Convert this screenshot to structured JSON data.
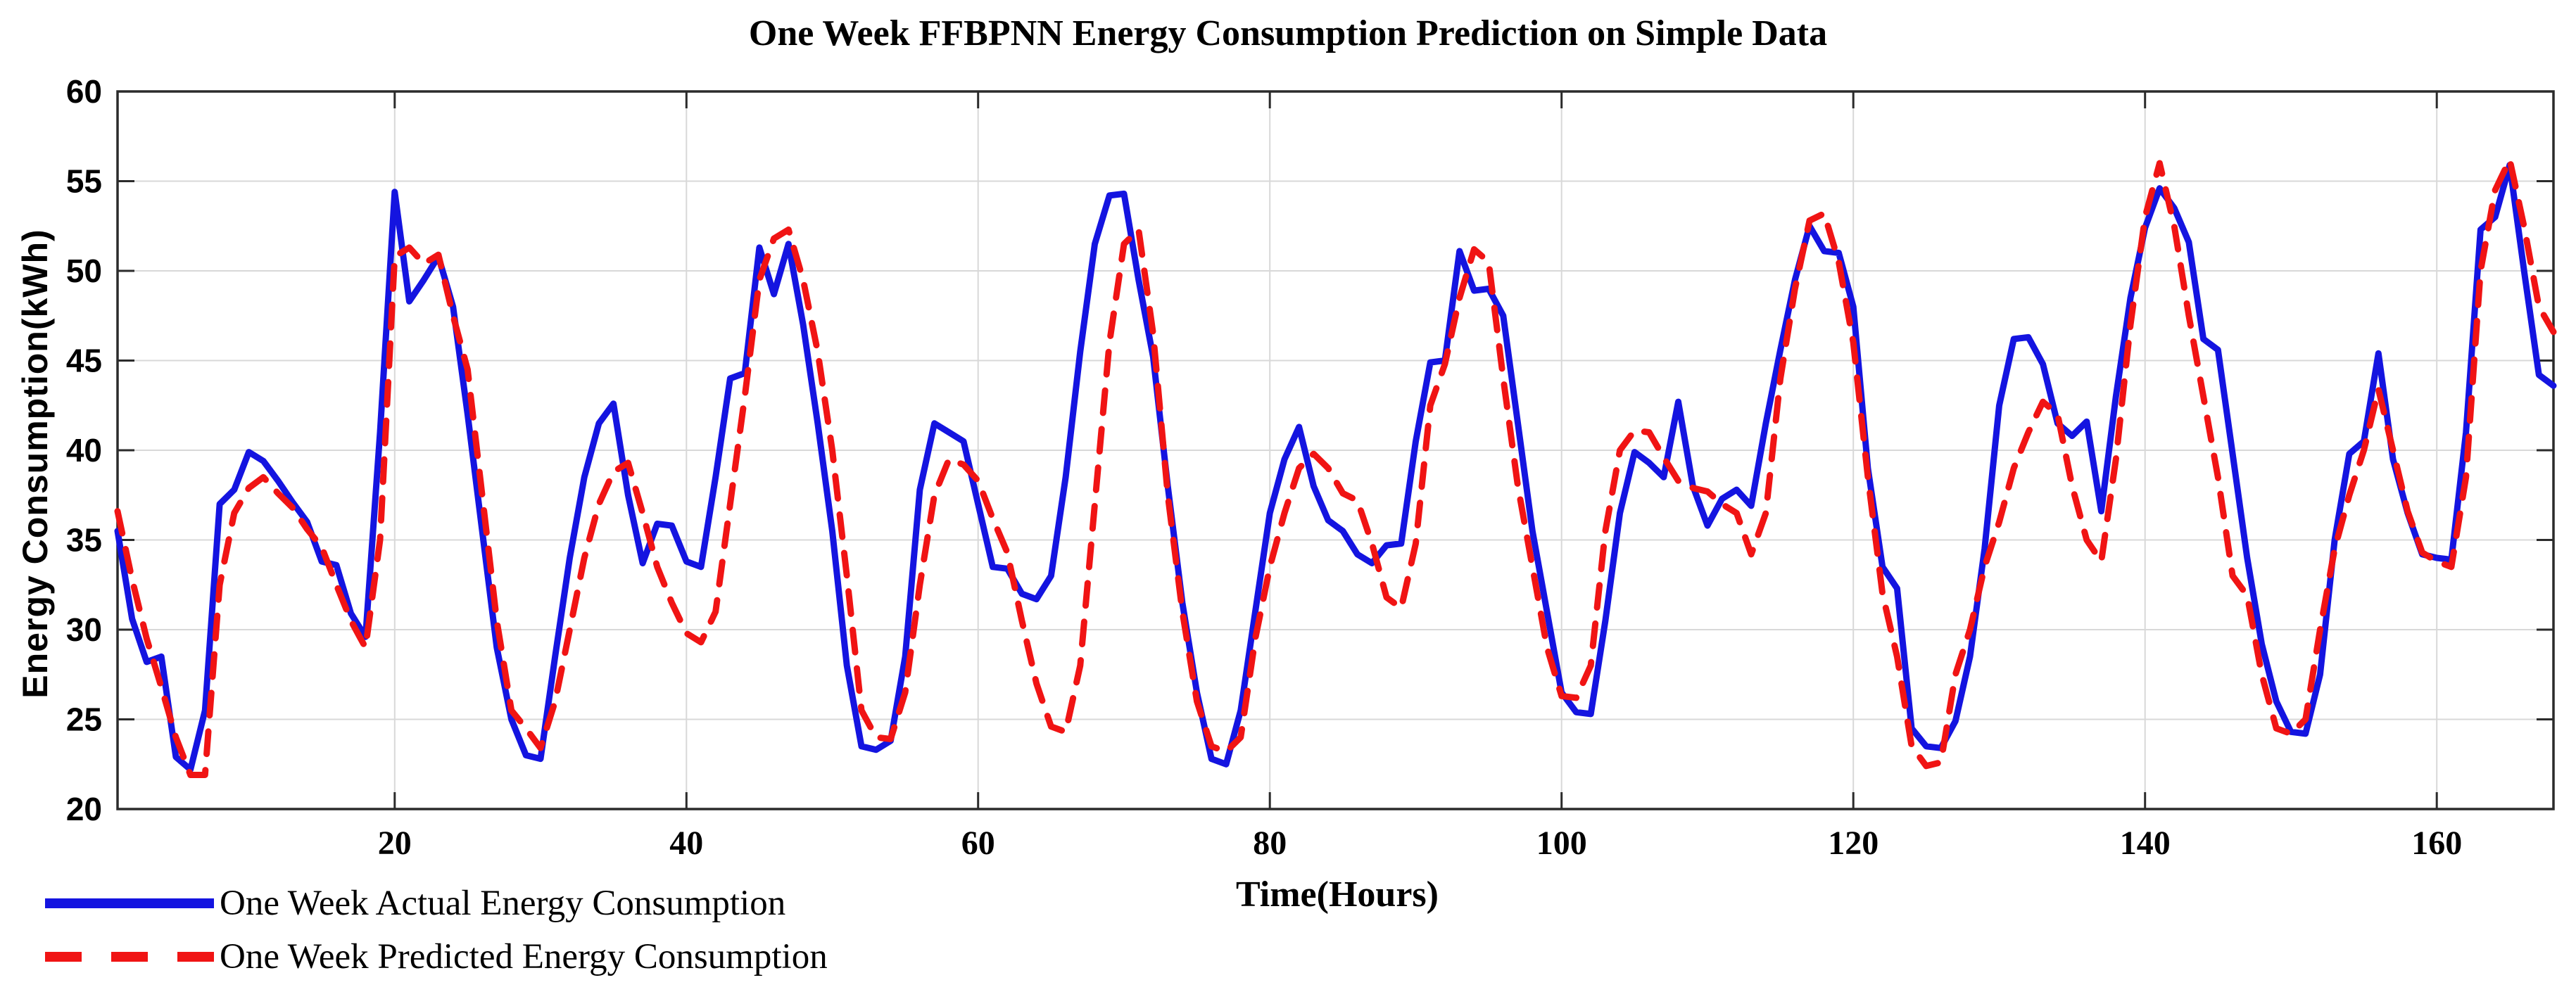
{
  "title": "One Week FFBPNN Energy Consumption Prediction on Simple Data",
  "chart_data": {
    "type": "line",
    "title": "One Week FFBPNN Energy Consumption Prediction on Simple Data",
    "xlabel": "Time(Hours)",
    "ylabel": "Energy Consumption(kWh)",
    "xlim": [
      1,
      168
    ],
    "ylim": [
      20,
      60
    ],
    "x_ticks": [
      20,
      40,
      60,
      80,
      100,
      120,
      140,
      160
    ],
    "y_ticks": [
      20,
      25,
      30,
      35,
      40,
      45,
      50,
      55,
      60
    ],
    "grid": true,
    "legend_position": "below-left",
    "colors": {
      "actual": "#1414e0",
      "predicted": "#f01414",
      "grid": "#d8d8d8",
      "axis": "#2b2b2b"
    },
    "x_unit": "hours",
    "series": [
      {
        "name": "One Week Actual Energy Consumption",
        "color": "#1414e0",
        "style": "solid",
        "values": [
          35.5,
          30.6,
          28.2,
          28.5,
          22.9,
          22.2,
          25.5,
          37.0,
          37.8,
          39.9,
          39.4,
          38.3,
          37.1,
          36.0,
          33.8,
          33.6,
          30.9,
          29.6,
          41.0,
          54.4,
          48.3,
          49.5,
          50.8,
          48.0,
          42.0,
          35.5,
          29.0,
          25.0,
          23.0,
          22.8,
          28.5,
          34.0,
          38.5,
          41.5,
          42.6,
          37.5,
          33.7,
          35.9,
          35.8,
          33.8,
          33.5,
          38.5,
          44.0,
          44.3,
          51.3,
          48.7,
          51.5,
          47.0,
          41.5,
          35.5,
          28.0,
          23.5,
          23.3,
          23.8,
          28.5,
          37.8,
          41.5,
          41.0,
          40.5,
          37.0,
          33.5,
          33.4,
          32.0,
          31.7,
          33.0,
          38.5,
          45.5,
          51.5,
          54.2,
          54.3,
          49.5,
          45.2,
          38.0,
          31.5,
          26.5,
          22.8,
          22.5,
          25.5,
          31.0,
          36.5,
          39.5,
          41.3,
          38.0,
          36.1,
          35.5,
          34.2,
          33.7,
          34.7,
          34.8,
          40.5,
          44.9,
          45.0,
          51.1,
          48.9,
          49.0,
          47.5,
          41.5,
          35.5,
          31.0,
          26.5,
          25.4,
          25.3,
          30.5,
          36.5,
          39.9,
          39.3,
          38.5,
          42.7,
          38.0,
          35.8,
          37.3,
          37.8,
          36.9,
          41.5,
          45.6,
          49.5,
          52.5,
          51.1,
          51.0,
          48.0,
          39.0,
          33.5,
          32.3,
          24.5,
          23.5,
          23.4,
          24.9,
          28.5,
          34.5,
          42.5,
          46.2,
          46.3,
          44.8,
          41.5,
          40.8,
          41.6,
          36.6,
          43.0,
          48.5,
          52.4,
          54.6,
          53.5,
          51.6,
          46.2,
          45.6,
          39.8,
          34.0,
          29.2,
          26.0,
          24.3,
          24.2,
          27.5,
          35.0,
          39.8,
          40.5,
          45.4,
          39.5,
          36.5,
          34.2,
          34.0,
          33.9,
          41.0,
          52.3,
          53.0,
          55.9,
          49.9,
          44.2,
          43.6
        ]
      },
      {
        "name": "One Week Predicted Energy Consumption",
        "color": "#f01414",
        "style": "dashed",
        "values": [
          36.6,
          32.8,
          29.5,
          26.8,
          24.0,
          21.9,
          21.9,
          32.5,
          36.5,
          37.9,
          38.5,
          37.6,
          36.8,
          35.6,
          34.6,
          32.5,
          30.5,
          29.0,
          35.0,
          50.8,
          51.3,
          50.4,
          50.9,
          47.5,
          44.5,
          37.5,
          30.5,
          25.5,
          24.5,
          23.4,
          26.0,
          30.0,
          34.0,
          37.0,
          38.8,
          39.3,
          36.5,
          33.5,
          31.5,
          29.8,
          29.3,
          31.0,
          37.0,
          43.0,
          49.5,
          51.8,
          52.3,
          49.5,
          45.5,
          40.0,
          33.0,
          25.5,
          24.0,
          23.9,
          26.5,
          32.5,
          37.5,
          39.5,
          39.2,
          38.3,
          36.2,
          34.3,
          30.5,
          27.0,
          24.6,
          24.3,
          28.0,
          37.0,
          46.0,
          51.5,
          52.3,
          46.5,
          37.5,
          31.0,
          26.0,
          23.5,
          23.2,
          24.0,
          29.5,
          33.5,
          36.5,
          39.0,
          39.8,
          39.0,
          37.6,
          37.2,
          34.8,
          31.8,
          31.2,
          34.8,
          42.5,
          44.8,
          48.5,
          51.2,
          50.5,
          44.0,
          38.0,
          33.5,
          29.0,
          26.3,
          26.2,
          28.0,
          35.5,
          40.0,
          41.1,
          41.0,
          39.6,
          38.3,
          37.9,
          37.7,
          37.0,
          36.5,
          34.2,
          36.5,
          44.0,
          49.0,
          52.8,
          53.2,
          50.5,
          46.0,
          38.5,
          32.0,
          28.5,
          23.5,
          22.4,
          22.6,
          27.5,
          30.0,
          33.5,
          36.0,
          39.0,
          41.0,
          42.7,
          42.0,
          38.0,
          35.0,
          33.8,
          39.5,
          47.0,
          53.0,
          56.0,
          52.5,
          47.5,
          43.0,
          38.5,
          33.0,
          31.9,
          27.5,
          24.5,
          24.2,
          25.0,
          30.0,
          34.5,
          37.5,
          40.0,
          43.4,
          40.0,
          36.6,
          34.3,
          33.8,
          33.5,
          38.5,
          50.0,
          54.5,
          56.2,
          52.4,
          48.0,
          46.6
        ]
      }
    ]
  },
  "legend": {
    "items": [
      {
        "label": "One Week Actual Energy Consumption"
      },
      {
        "label": "One Week Predicted Energy Consumption"
      }
    ]
  }
}
